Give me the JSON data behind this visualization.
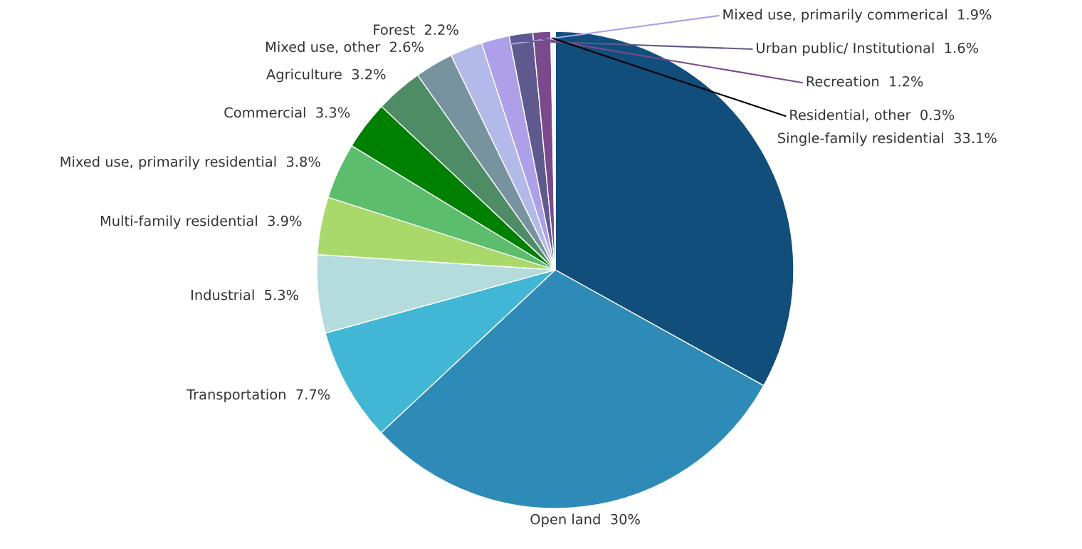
{
  "chart_data": {
    "type": "pie",
    "categories": [
      "Single-family residential",
      "Open land",
      "Transportation",
      "Industrial",
      "Multi-family residential",
      "Mixed use, primarily residential",
      "Commercial",
      "Agriculture",
      "Mixed use, other",
      "Forest",
      "Mixed use, primarily commerical",
      "Urban public/ Institutional",
      "Recreation",
      "Residential, other"
    ],
    "values": [
      33.1,
      30,
      7.7,
      5.3,
      3.9,
      3.8,
      3.3,
      3.2,
      2.6,
      2.2,
      1.9,
      1.6,
      1.2,
      0.3
    ],
    "value_labels": [
      "33.1%",
      "30%",
      "7.7%",
      "5.3%",
      "3.9%",
      "3.8%",
      "3.3%",
      "3.2%",
      "2.6%",
      "2.2%",
      "1.9%",
      "1.6%",
      "1.2%",
      "0.3%"
    ],
    "colors": [
      "#114e7c",
      "#2e8bb8",
      "#41b6d5",
      "#b4dcdc",
      "#a8d96a",
      "#5cbd6c",
      "#008000",
      "#4e8c66",
      "#7893a0",
      "#b3b9e8",
      "#aea0e8",
      "#5e5a8e",
      "#7a4a8c",
      "#f5f5f5"
    ],
    "legend": false
  }
}
